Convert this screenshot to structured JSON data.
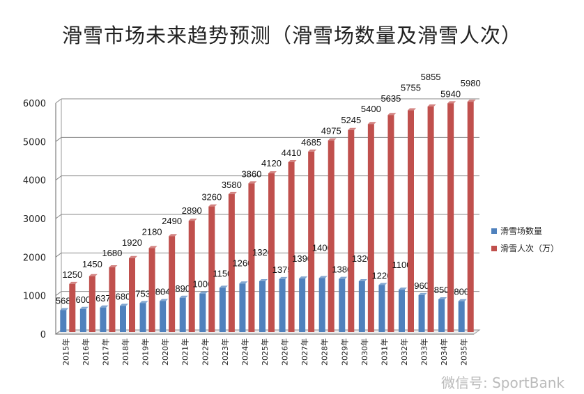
{
  "chart_data": {
    "type": "bar",
    "title": "滑雪市场未来趋势预测（滑雪场数量及滑雪人次）",
    "xlabel": "",
    "ylabel": "",
    "ylim": [
      0,
      6000
    ],
    "yticks": [
      0,
      1000,
      2000,
      3000,
      4000,
      5000,
      6000
    ],
    "grid": true,
    "legend": "right",
    "categories": [
      "2015年",
      "2016年",
      "2017年",
      "2018年",
      "2019年",
      "2020年",
      "2021年",
      "2022年",
      "2023年",
      "2024年",
      "2025年",
      "2026年",
      "2027年",
      "2028年",
      "2029年",
      "2030年",
      "2031年",
      "2032年",
      "2033年",
      "2034年",
      "2035年"
    ],
    "series": [
      {
        "name": "滑雪场数量",
        "color": "#4f81bd",
        "values": [
          568,
          600,
          637,
          680,
          753,
          804,
          890,
          1000,
          1150,
          1260,
          1320,
          1375,
          1390,
          1400,
          1380,
          1320,
          1220,
          1100,
          960,
          850,
          800
        ]
      },
      {
        "name": "滑雪人次（万）",
        "color": "#c0504d",
        "values": [
          1250,
          1450,
          1680,
          1920,
          2180,
          2490,
          2890,
          3260,
          3580,
          3860,
          4120,
          4410,
          4685,
          4975,
          5245,
          5400,
          5635,
          5755,
          5855,
          5940,
          5980
        ]
      }
    ]
  },
  "watermark": "微信号: SportBank"
}
